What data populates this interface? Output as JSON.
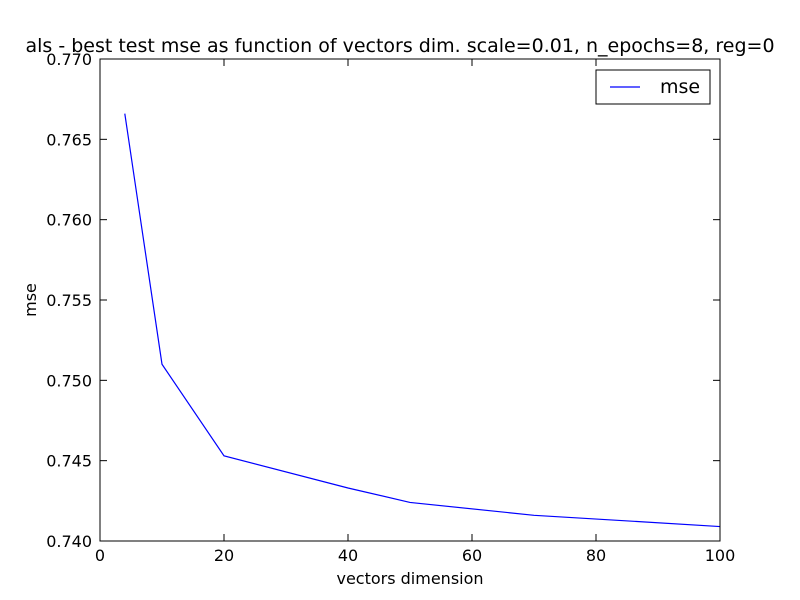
{
  "chart_data": {
    "type": "line",
    "title": "als - best test mse as function of vectors dim.  scale=0.01, n_epochs=8, reg=0",
    "xlabel": "vectors dimension",
    "ylabel": "mse",
    "xlim": [
      0,
      100
    ],
    "ylim": [
      0.74,
      0.77
    ],
    "x_ticks": [
      0,
      20,
      40,
      60,
      80,
      100
    ],
    "x_tick_labels": [
      "0",
      "20",
      "40",
      "60",
      "80",
      "100"
    ],
    "y_ticks": [
      0.74,
      0.745,
      0.75,
      0.755,
      0.76,
      0.765,
      0.77
    ],
    "y_tick_labels": [
      "0.740",
      "0.745",
      "0.750",
      "0.755",
      "0.760",
      "0.765",
      "0.770"
    ],
    "grid": false,
    "legend_position": "top-right",
    "series": [
      {
        "name": "mse",
        "color": "#0000ff",
        "x": [
          4,
          10,
          20,
          40,
          50,
          70,
          100
        ],
        "y": [
          0.7666,
          0.751,
          0.7453,
          0.7433,
          0.7424,
          0.7416,
          0.7409
        ]
      }
    ]
  }
}
